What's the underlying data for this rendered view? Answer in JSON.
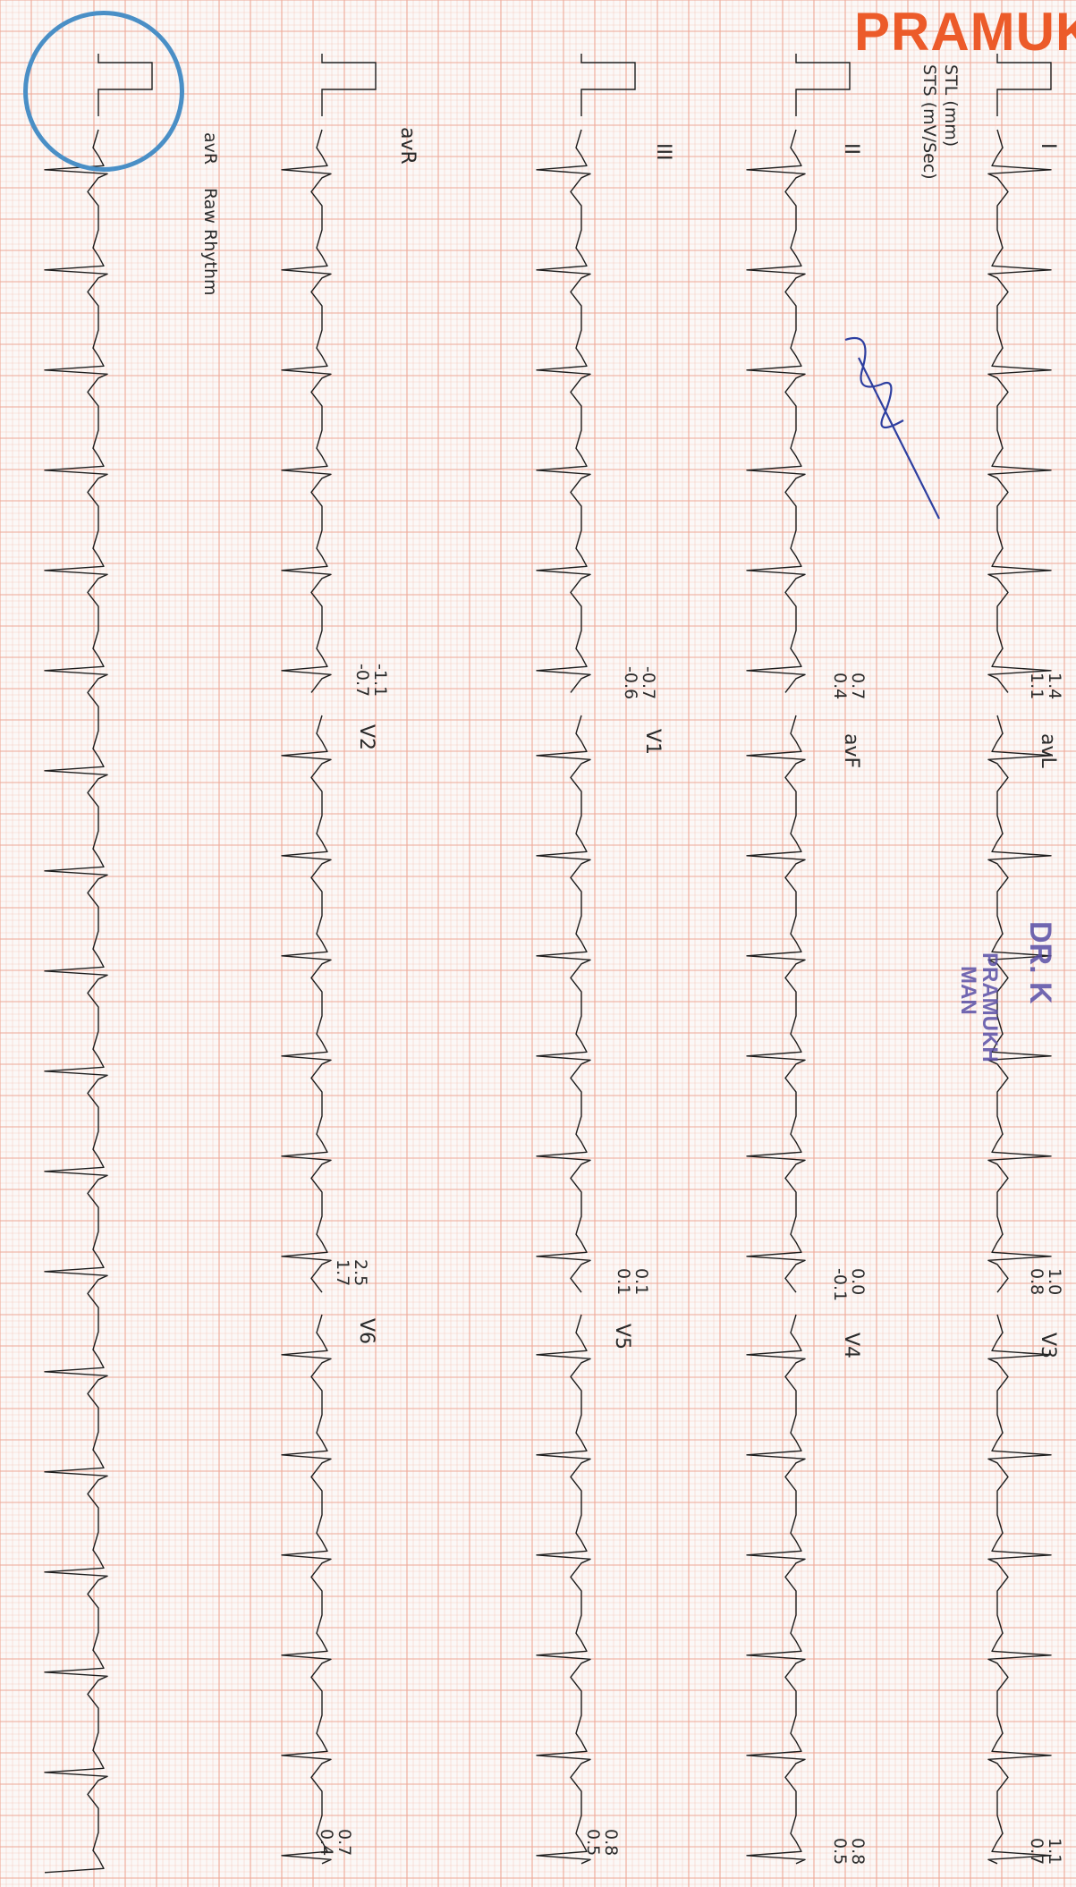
{
  "header": {
    "brand_text": "PRAMUK",
    "brand_color": "#ec5b2a",
    "legend": [
      "STL (mm)",
      "STS (mV/Sec)"
    ]
  },
  "stamp": {
    "name_fragment": "DR. K",
    "line1": "PRAMUKH",
    "line2": "MAN"
  },
  "leads": [
    {
      "label": "I",
      "stl": "1.4",
      "sts": "1.1"
    },
    {
      "label": "avL",
      "stl": "1.0",
      "sts": "0.8"
    },
    {
      "label": "V3",
      "stl": "1.1",
      "sts": "0.7"
    },
    {
      "label": "II",
      "stl": "0.7",
      "sts": "0.4"
    },
    {
      "label": "avF",
      "stl": "0.0",
      "sts": "-0.1"
    },
    {
      "label": "V4",
      "stl": "0.8",
      "sts": "0.5"
    },
    {
      "label": "III",
      "stl": "-0.7",
      "sts": "-0.6"
    },
    {
      "label": "V1",
      "stl": "0.1",
      "sts": "0.1"
    },
    {
      "label": "V5",
      "stl": "0.8",
      "sts": "0.5"
    },
    {
      "label": "avR",
      "stl": "-1.1",
      "sts": "-0.7"
    },
    {
      "label": "V2",
      "stl": "2.5",
      "sts": "1.7"
    },
    {
      "label": "V6",
      "stl": "0.7",
      "sts": "0.4"
    }
  ],
  "rhythm": {
    "lead": "avR",
    "title": "Raw Rhythm"
  },
  "colors": {
    "grid_minor": "#f6cfc4",
    "grid_major": "#eea897",
    "trace": "#1e1e1e",
    "stamp": "#5a4fa6"
  }
}
